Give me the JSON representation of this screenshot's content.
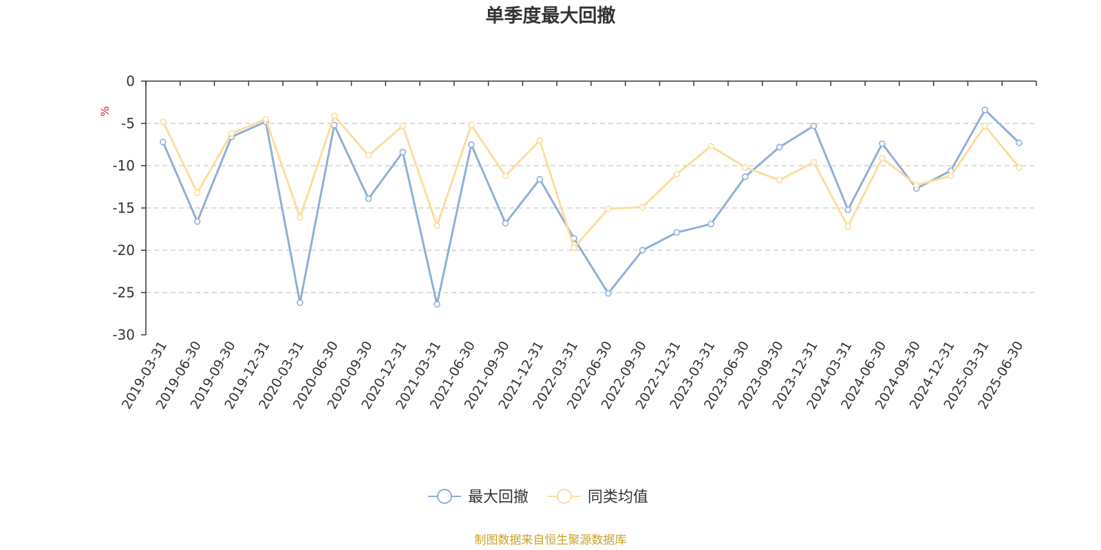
{
  "chart_data": {
    "type": "line",
    "title": "单季度最大回撤",
    "ylabel": "%",
    "ylim": [
      -30,
      0
    ],
    "yticks": [
      0,
      -5,
      -10,
      -15,
      -20,
      -25,
      -30
    ],
    "grid": true,
    "legend_position": "bottom-center",
    "categories": [
      "2019-03-31",
      "2019-06-30",
      "2019-09-30",
      "2019-12-31",
      "2020-03-31",
      "2020-06-30",
      "2020-09-30",
      "2020-12-31",
      "2021-03-31",
      "2021-06-30",
      "2021-09-30",
      "2021-12-31",
      "2022-03-31",
      "2022-06-30",
      "2022-09-30",
      "2022-12-31",
      "2023-03-31",
      "2023-06-30",
      "2023-09-30",
      "2023-12-31",
      "2024-03-31",
      "2024-06-30",
      "2024-09-30",
      "2024-12-31",
      "2025-03-31",
      "2025-06-30"
    ],
    "series": [
      {
        "name": "最大回撤",
        "color": "#8eaed8",
        "values": [
          -7.2,
          -16.6,
          -6.6,
          -4.8,
          -26.2,
          -5.2,
          -13.9,
          -8.4,
          -26.4,
          -7.5,
          -16.8,
          -11.6,
          -18.6,
          -25.1,
          -20.0,
          -17.9,
          -16.9,
          -11.3,
          -7.8,
          -5.3,
          -15.2,
          -7.4,
          -12.7,
          -10.6,
          -3.4,
          -7.3
        ]
      },
      {
        "name": "同类均值",
        "color": "#fddc9c",
        "values": [
          -4.8,
          -13.2,
          -6.2,
          -4.5,
          -16.1,
          -4.1,
          -8.8,
          -5.3,
          -17.1,
          -5.2,
          -11.2,
          -7.0,
          -19.7,
          -15.1,
          -14.9,
          -11.0,
          -7.7,
          -10.2,
          -11.7,
          -9.6,
          -17.2,
          -9.1,
          -12.3,
          -11.2,
          -5.3,
          -10.2
        ]
      }
    ],
    "source_note": "制图数据来自恒生聚源数据库",
    "source_color": "#c9a227",
    "unit_color": "#e02020",
    "axis_color": "#333333"
  }
}
